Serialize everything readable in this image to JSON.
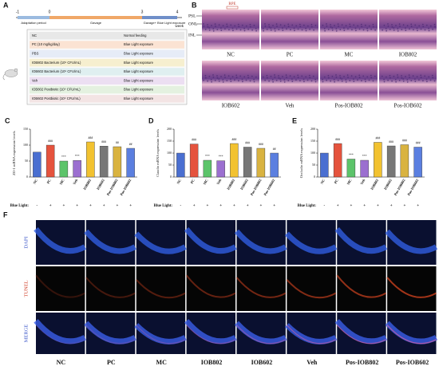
{
  "panel_labels": {
    "a": "A",
    "b": "B",
    "f": "F"
  },
  "panel_a": {
    "timeline_ticks": [
      "-1",
      "0",
      "3",
      "4"
    ],
    "unit": "week",
    "phases": [
      "Adaptation period",
      "Gavage",
      "Gavage+ Blue Light exposure"
    ],
    "rows": [
      [
        "NC",
        "Normal feeding"
      ],
      [
        "PC (10 mg/kg/day)",
        "Blue Light exposure"
      ],
      [
        "PBS",
        "Blue Light exposure"
      ],
      [
        "IOB802 Bacterium (10⁹ CFU/mL)",
        "Blue Light exposure"
      ],
      [
        "IOB602 Bacterium (10⁹ CFU/mL)",
        "Blue Light exposure"
      ],
      [
        "Veh",
        "Blue Light exposure"
      ],
      [
        "IOB802 Postbiotic (10⁹ CFU/mL)",
        "Blue Light exposure"
      ],
      [
        "IOB602 Postbiotic (10⁹ CFU/mL)",
        "Blue Light exposure"
      ]
    ]
  },
  "panel_b": {
    "layers": [
      "PSL",
      "ONL",
      "INL"
    ],
    "top_layer": "RPE",
    "images": [
      "NC",
      "PC",
      "MC",
      "IOB802",
      "IOB602",
      "Veh",
      "Pos-IOB802",
      "Pos-IOB602"
    ]
  },
  "chart_data": [
    {
      "type": "bar",
      "label": "C",
      "y_label": "ZO-1 mRNA expression levels",
      "categories": [
        "NC",
        "PC",
        "MC",
        "Veh",
        "IOB802",
        "IOB602",
        "Pos-IOB802",
        "Pos-IOB602"
      ],
      "values": [
        78,
        100,
        50,
        52,
        110,
        97,
        95,
        90
      ],
      "colors": [
        "#4a6fd1",
        "#e5533d",
        "#5cc46a",
        "#9b6fd0",
        "#f2c230",
        "#777777",
        "#d9b340",
        "#5b7fe0"
      ],
      "annotations": [
        null,
        "###",
        "***",
        "***",
        "###",
        "###",
        "##",
        "##"
      ],
      "ylim": [
        0,
        150
      ],
      "yticks": [
        0,
        50,
        100,
        150
      ],
      "condition_label": "Blue Light:",
      "condition": [
        "-",
        "+",
        "+",
        "+",
        "+",
        "+",
        "+",
        "+"
      ]
    },
    {
      "type": "bar",
      "label": "D",
      "y_label": "Claudin mRNA expression levels",
      "categories": [
        "NC",
        "PC",
        "MC",
        "Veh",
        "IOB802",
        "IOB602",
        "Pos-IOB802",
        "Pos-IOB602"
      ],
      "values": [
        100,
        138,
        70,
        68,
        140,
        125,
        120,
        100
      ],
      "colors": [
        "#4a6fd1",
        "#e5533d",
        "#5cc46a",
        "#9b6fd0",
        "#f2c230",
        "#777777",
        "#d9b340",
        "#5b7fe0"
      ],
      "annotations": [
        null,
        "###",
        "***",
        "***",
        "###",
        "###",
        "###",
        "##"
      ],
      "ylim": [
        0,
        200
      ],
      "yticks": [
        0,
        50,
        100,
        150,
        200
      ],
      "condition_label": "Blue Light:",
      "condition": [
        "-",
        "+",
        "+",
        "+",
        "+",
        "+",
        "+",
        "+"
      ]
    },
    {
      "type": "bar",
      "label": "E",
      "y_label": "Occludin mRNA expression levels",
      "categories": [
        "NC",
        "PC",
        "MC",
        "Veh",
        "IOB802",
        "IOB602",
        "Pos-IOB802",
        "Pos-IOB602"
      ],
      "values": [
        100,
        140,
        75,
        70,
        145,
        130,
        135,
        125
      ],
      "colors": [
        "#4a6fd1",
        "#e5533d",
        "#5cc46a",
        "#9b6fd0",
        "#f2c230",
        "#777777",
        "#d9b340",
        "#5b7fe0"
      ],
      "annotations": [
        null,
        "###",
        "***",
        "***",
        "###",
        "###",
        "###",
        "###"
      ],
      "ylim": [
        0,
        200
      ],
      "yticks": [
        0,
        50,
        100,
        150,
        200
      ],
      "condition_label": "Blue Light:",
      "condition": [
        "-",
        "+",
        "+",
        "+",
        "+",
        "+",
        "+",
        "+"
      ]
    }
  ],
  "panel_f": {
    "rows": [
      "DAPI",
      "TUNEL",
      "MERGE"
    ],
    "columns": [
      "NC",
      "PC",
      "MC",
      "IOB802",
      "IOB602",
      "Veh",
      "Pos-IOB802",
      "Pos-IOB602"
    ]
  }
}
